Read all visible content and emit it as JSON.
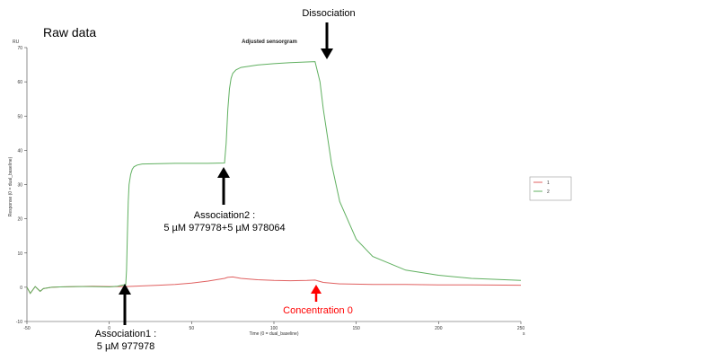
{
  "page_title": "Raw data",
  "chart_data": {
    "type": "line",
    "title": "Adjusted sensorgram",
    "xlabel": "Time (0 = dual_baseline)",
    "ylabel": "Response (0 = dual_baseline)",
    "x_unit": "s",
    "y_unit": "RU",
    "xlim": [
      -50,
      250
    ],
    "ylim": [
      -10,
      70
    ],
    "x_ticks": [
      -50,
      0,
      50,
      100,
      150,
      200,
      250
    ],
    "y_ticks": [
      -10,
      0,
      10,
      20,
      30,
      40,
      50,
      60,
      70
    ],
    "grid": false,
    "legend_position": "right",
    "series": [
      {
        "name": "1",
        "color": "#e06060",
        "x": [
          -50,
          -48,
          -45,
          -42,
          -40,
          -35,
          -30,
          -20,
          -10,
          0,
          10,
          20,
          30,
          40,
          50,
          60,
          65,
          70,
          72,
          75,
          80,
          90,
          100,
          110,
          120,
          125,
          130,
          140,
          160,
          180,
          200,
          220,
          250
        ],
        "y": [
          0,
          -1.8,
          0.2,
          -1.2,
          -0.4,
          0,
          0.1,
          0.2,
          0.3,
          0.2,
          0.2,
          0.4,
          0.6,
          0.8,
          1.2,
          1.8,
          2.2,
          2.6,
          2.9,
          3.0,
          2.6,
          2.2,
          2.0,
          1.9,
          2.0,
          2.1,
          1.4,
          1.0,
          0.8,
          0.8,
          0.7,
          0.7,
          0.6
        ]
      },
      {
        "name": "2",
        "color": "#60b060",
        "x": [
          -50,
          -48,
          -45,
          -42,
          -40,
          -35,
          -30,
          -20,
          -10,
          0,
          5,
          10,
          10.5,
          11,
          11.5,
          12,
          13,
          14,
          15,
          17,
          20,
          30,
          40,
          50,
          60,
          70,
          71,
          72,
          73,
          74,
          75,
          77,
          80,
          90,
          100,
          110,
          120,
          125,
          128,
          130,
          135,
          140,
          150,
          160,
          180,
          200,
          220,
          250
        ],
        "y": [
          0,
          -1.8,
          0.2,
          -1.2,
          -0.4,
          0,
          0.1,
          0.2,
          0.2,
          0.1,
          0.3,
          0.8,
          5,
          15,
          25,
          30,
          33,
          34.5,
          35.2,
          35.7,
          36,
          36.1,
          36.2,
          36.2,
          36.2,
          36.3,
          42,
          52,
          58,
          61,
          62.5,
          63.5,
          64.2,
          64.9,
          65.3,
          65.6,
          65.8,
          65.9,
          60,
          52,
          36,
          25,
          14,
          9,
          5,
          3.5,
          2.6,
          2.0
        ]
      }
    ],
    "annotations": [
      {
        "id": "association1",
        "lines": [
          "Association1 :",
          "5 µM 977978"
        ],
        "color": "#000000"
      },
      {
        "id": "association2",
        "lines": [
          "Association2 :",
          "5 µM 977978+5 µM 978064"
        ],
        "color": "#000000"
      },
      {
        "id": "dissociation",
        "lines": [
          "Dissociation"
        ],
        "color": "#000000"
      },
      {
        "id": "concentration0",
        "lines": [
          "Concentration 0"
        ],
        "color": "#ff0000"
      }
    ]
  }
}
